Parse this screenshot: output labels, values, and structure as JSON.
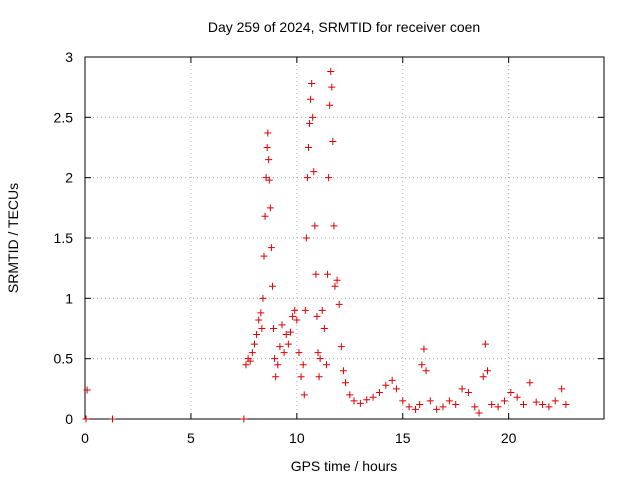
{
  "chart_data": {
    "type": "scatter",
    "title": "Day 259 of 2024, SRMTID for receiver coen",
    "xlabel": "GPS time / hours",
    "ylabel": "SRMTID / TECUs",
    "xlim": [
      0,
      24.5
    ],
    "ylim": [
      0,
      3
    ],
    "grid": true,
    "x_ticks": [
      0,
      5,
      10,
      15,
      20
    ],
    "x_tick_labels": [
      "0",
      "5",
      "10",
      "15",
      "20"
    ],
    "y_ticks": [
      0,
      0.5,
      1,
      1.5,
      2,
      2.5,
      3
    ],
    "y_tick_labels": [
      "0",
      "0.5",
      "1",
      "1.5",
      "2",
      "2.5",
      "3"
    ],
    "marker": "+",
    "series": [
      {
        "name": "SRMTID",
        "color": "#dd0000",
        "points": [
          [
            0.05,
            0.0
          ],
          [
            0.1,
            0.24
          ],
          [
            1.3,
            0.0
          ],
          [
            7.5,
            0.0
          ],
          [
            7.6,
            0.45
          ],
          [
            7.7,
            0.5
          ],
          [
            7.8,
            0.48
          ],
          [
            7.9,
            0.55
          ],
          [
            8.0,
            0.62
          ],
          [
            8.1,
            0.7
          ],
          [
            8.2,
            0.82
          ],
          [
            8.3,
            0.88
          ],
          [
            8.35,
            0.75
          ],
          [
            8.4,
            1.0
          ],
          [
            8.45,
            1.35
          ],
          [
            8.5,
            1.68
          ],
          [
            8.55,
            2.0
          ],
          [
            8.6,
            2.25
          ],
          [
            8.63,
            2.37
          ],
          [
            8.67,
            2.15
          ],
          [
            8.7,
            1.98
          ],
          [
            8.75,
            1.75
          ],
          [
            8.8,
            1.42
          ],
          [
            8.85,
            1.1
          ],
          [
            8.9,
            0.75
          ],
          [
            8.95,
            0.5
          ],
          [
            9.0,
            0.35
          ],
          [
            9.1,
            0.45
          ],
          [
            9.2,
            0.6
          ],
          [
            9.3,
            0.78
          ],
          [
            9.4,
            0.55
          ],
          [
            9.5,
            0.7
          ],
          [
            9.6,
            0.62
          ],
          [
            9.7,
            0.72
          ],
          [
            9.8,
            0.85
          ],
          [
            9.9,
            0.9
          ],
          [
            10.0,
            0.82
          ],
          [
            10.1,
            0.55
          ],
          [
            10.2,
            0.35
          ],
          [
            10.3,
            0.45
          ],
          [
            10.35,
            0.2
          ],
          [
            10.4,
            0.9
          ],
          [
            10.45,
            1.5
          ],
          [
            10.5,
            2.0
          ],
          [
            10.55,
            2.25
          ],
          [
            10.6,
            2.45
          ],
          [
            10.65,
            2.65
          ],
          [
            10.7,
            2.78
          ],
          [
            10.75,
            2.5
          ],
          [
            10.8,
            2.05
          ],
          [
            10.85,
            1.6
          ],
          [
            10.9,
            1.2
          ],
          [
            10.95,
            0.85
          ],
          [
            11.0,
            0.55
          ],
          [
            11.05,
            0.35
          ],
          [
            11.1,
            0.5
          ],
          [
            11.2,
            0.9
          ],
          [
            11.3,
            0.75
          ],
          [
            11.4,
            0.45
          ],
          [
            11.45,
            1.2
          ],
          [
            11.5,
            2.0
          ],
          [
            11.55,
            2.6
          ],
          [
            11.6,
            2.88
          ],
          [
            11.65,
            2.75
          ],
          [
            11.7,
            2.3
          ],
          [
            11.75,
            1.6
          ],
          [
            11.8,
            1.1
          ],
          [
            11.9,
            1.15
          ],
          [
            12.0,
            0.95
          ],
          [
            12.1,
            0.6
          ],
          [
            12.2,
            0.4
          ],
          [
            12.3,
            0.3
          ],
          [
            12.5,
            0.2
          ],
          [
            12.7,
            0.15
          ],
          [
            13.0,
            0.13
          ],
          [
            13.3,
            0.16
          ],
          [
            13.6,
            0.18
          ],
          [
            13.9,
            0.22
          ],
          [
            14.2,
            0.28
          ],
          [
            14.5,
            0.32
          ],
          [
            14.7,
            0.25
          ],
          [
            15.0,
            0.15
          ],
          [
            15.3,
            0.1
          ],
          [
            15.6,
            0.08
          ],
          [
            15.8,
            0.12
          ],
          [
            15.9,
            0.45
          ],
          [
            16.0,
            0.58
          ],
          [
            16.1,
            0.4
          ],
          [
            16.3,
            0.15
          ],
          [
            16.6,
            0.08
          ],
          [
            16.9,
            0.1
          ],
          [
            17.2,
            0.15
          ],
          [
            17.5,
            0.12
          ],
          [
            17.8,
            0.25
          ],
          [
            18.1,
            0.22
          ],
          [
            18.4,
            0.1
          ],
          [
            18.6,
            0.05
          ],
          [
            18.8,
            0.35
          ],
          [
            18.9,
            0.62
          ],
          [
            19.0,
            0.4
          ],
          [
            19.2,
            0.12
          ],
          [
            19.5,
            0.1
          ],
          [
            19.8,
            0.15
          ],
          [
            20.1,
            0.22
          ],
          [
            20.4,
            0.18
          ],
          [
            20.7,
            0.12
          ],
          [
            21.0,
            0.3
          ],
          [
            21.3,
            0.14
          ],
          [
            21.6,
            0.12
          ],
          [
            21.9,
            0.1
          ],
          [
            22.2,
            0.15
          ],
          [
            22.5,
            0.25
          ],
          [
            22.7,
            0.12
          ]
        ]
      }
    ]
  }
}
